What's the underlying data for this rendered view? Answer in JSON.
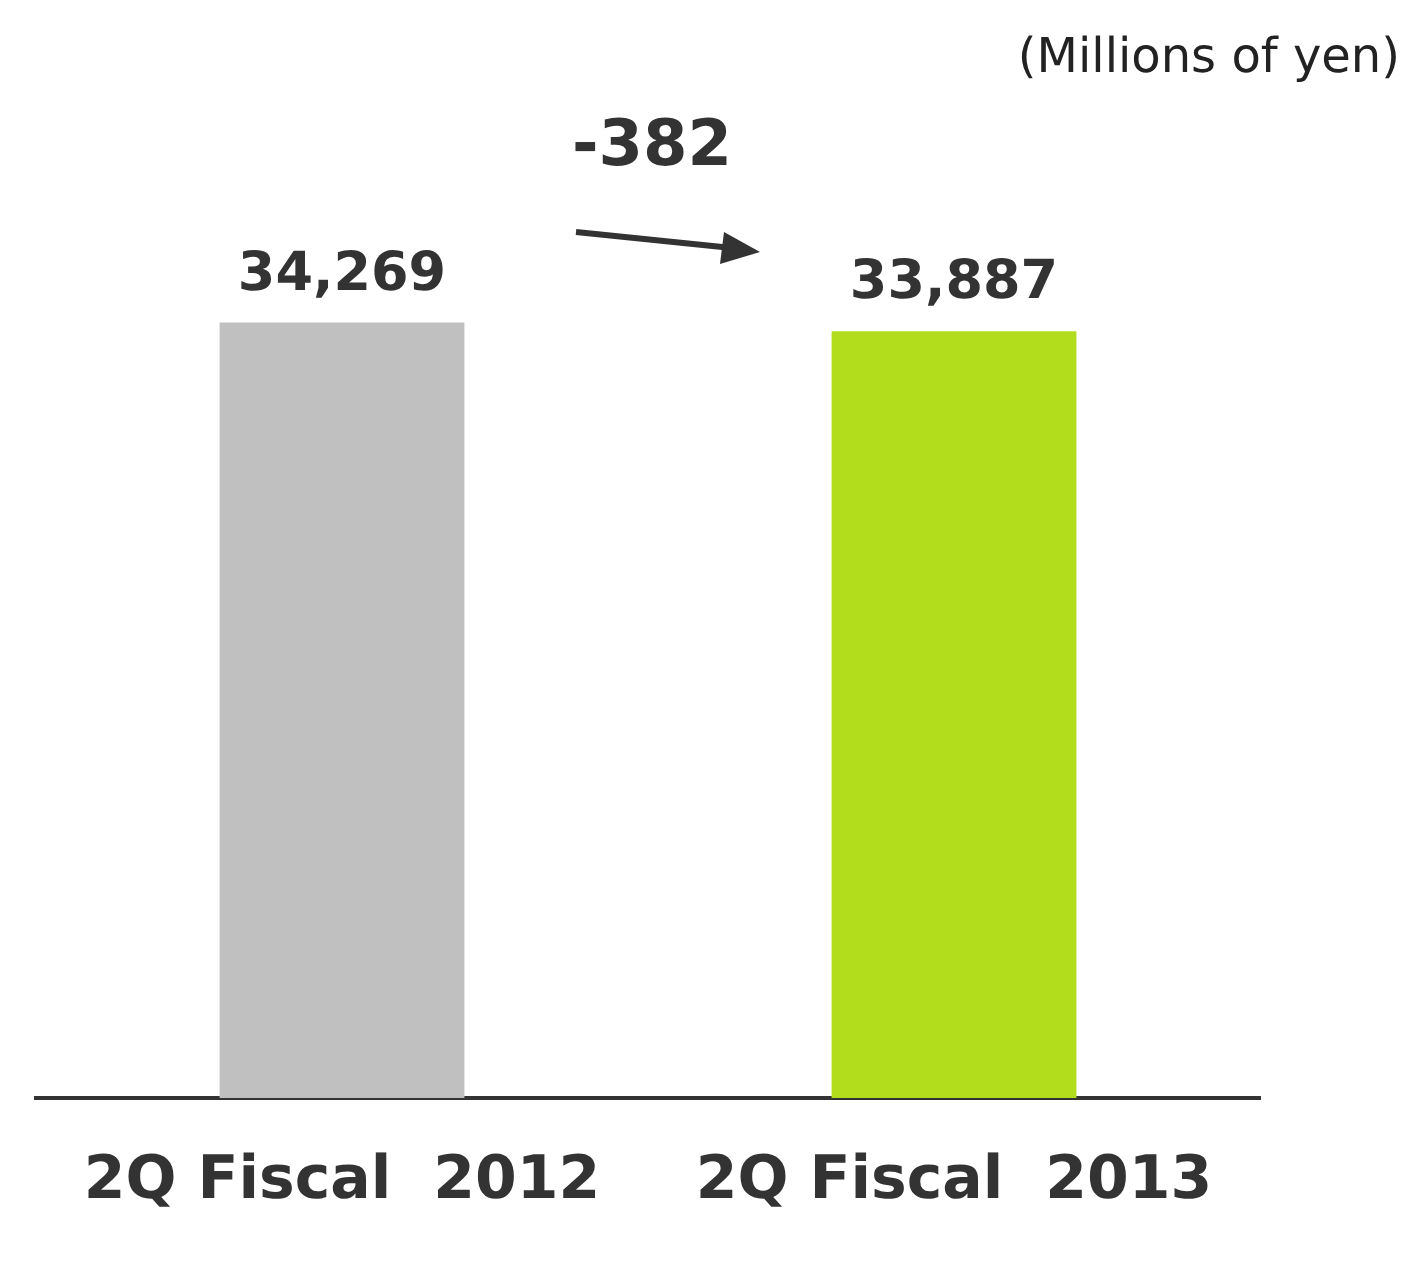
{
  "chart_data": {
    "type": "bar",
    "categories": [
      "2Q Fiscal  2012",
      "2Q Fiscal  2013"
    ],
    "values": [
      34269,
      33887
    ],
    "colors": [
      "#c0c0c0",
      "#b1dd1d"
    ],
    "value_labels": [
      "34,269",
      "33,887"
    ],
    "annotations": [
      "(Millions of yen)",
      "-382"
    ],
    "grid": false,
    "legend": false
  }
}
